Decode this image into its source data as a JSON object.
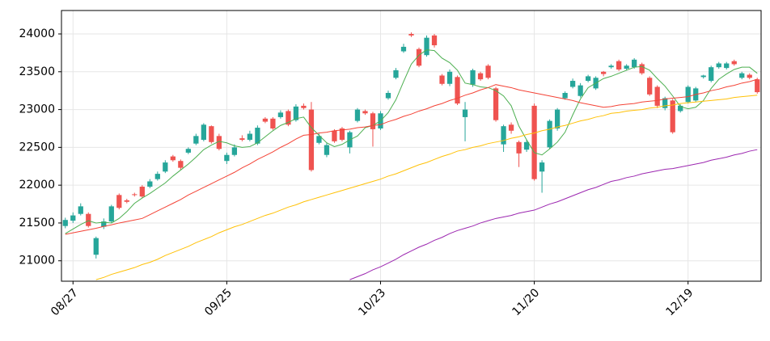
{
  "chart_data": {
    "type": "candlestick",
    "categories": [
      null,
      "08/27",
      null,
      null,
      null,
      null,
      null,
      null,
      null,
      null,
      null,
      null,
      null,
      null,
      null,
      null,
      null,
      null,
      null,
      null,
      null,
      "09/25",
      null,
      null,
      null,
      null,
      null,
      null,
      null,
      null,
      null,
      null,
      null,
      null,
      null,
      null,
      null,
      null,
      null,
      null,
      null,
      "10/23",
      null,
      null,
      null,
      null,
      null,
      null,
      null,
      null,
      null,
      null,
      null,
      null,
      null,
      null,
      null,
      null,
      null,
      null,
      null,
      "11/20",
      null,
      null,
      null,
      null,
      null,
      null,
      null,
      null,
      null,
      null,
      null,
      null,
      null,
      null,
      null,
      null,
      null,
      null,
      null,
      "12/19",
      null,
      null,
      null,
      null,
      null,
      null,
      null,
      null,
      null
    ],
    "open": [
      21460,
      21530,
      21620,
      21620,
      21080,
      21450,
      21520,
      21870,
      21800,
      21880,
      21980,
      21980,
      22080,
      22180,
      22380,
      22320,
      22430,
      22550,
      22600,
      22780,
      22650,
      22320,
      22400,
      22620,
      22600,
      22550,
      22880,
      22880,
      22900,
      22980,
      22860,
      23050,
      23000,
      22560,
      22400,
      22720,
      22750,
      22500,
      22850,
      22980,
      22950,
      22750,
      23150,
      23420,
      23770,
      24000,
      23800,
      23720,
      23980,
      23450,
      23340,
      23430,
      22900,
      23330,
      23480,
      23580,
      23280,
      22540,
      22800,
      22570,
      22470,
      23050,
      22180,
      22500,
      22750,
      23150,
      23300,
      23180,
      23380,
      23280,
      23500,
      23560,
      23640,
      23540,
      23560,
      23600,
      23420,
      23300,
      23020,
      23120,
      22980,
      23100,
      23120,
      23430,
      23380,
      23560,
      23550,
      23640,
      23420,
      23460,
      23400
    ],
    "high": [
      21570,
      21640,
      21760,
      21640,
      21320,
      21560,
      21740,
      21890,
      21820,
      21900,
      22000,
      22080,
      22180,
      22330,
      22400,
      22340,
      22500,
      22680,
      22820,
      22790,
      22680,
      22430,
      22540,
      22660,
      22720,
      22790,
      22900,
      22900,
      22990,
      23000,
      23070,
      23080,
      23100,
      22680,
      22560,
      22740,
      22770,
      22720,
      23020,
      23000,
      22970,
      22980,
      23250,
      23550,
      23870,
      24020,
      23820,
      23980,
      24000,
      23470,
      23530,
      23450,
      23100,
      23540,
      23500,
      23600,
      23300,
      22800,
      22830,
      22590,
      22600,
      23080,
      22330,
      22870,
      23020,
      23240,
      23410,
      23350,
      23460,
      23440,
      23510,
      23600,
      23660,
      23600,
      23680,
      23620,
      23440,
      23320,
      23170,
      23140,
      23070,
      23320,
      23300,
      23460,
      23580,
      23630,
      23630,
      23660,
      23500,
      23480,
      23420
    ],
    "low": [
      21430,
      21500,
      21600,
      21440,
      21030,
      21420,
      21500,
      21680,
      21760,
      21850,
      21830,
      21960,
      22060,
      22160,
      22310,
      22200,
      22410,
      22530,
      22580,
      22550,
      22460,
      22280,
      22380,
      22580,
      22580,
      22530,
      22820,
      22730,
      22880,
      22780,
      22840,
      23000,
      22180,
      22540,
      22370,
      22560,
      22580,
      22420,
      22830,
      22930,
      22510,
      22730,
      23130,
      23400,
      23750,
      23960,
      23560,
      23700,
      23820,
      23320,
      23310,
      23060,
      22580,
      23300,
      23380,
      23400,
      22840,
      22440,
      22680,
      22240,
      22440,
      22060,
      21900,
      22480,
      22720,
      23130,
      23280,
      23160,
      23360,
      23260,
      23440,
      23540,
      23510,
      23520,
      23540,
      23460,
      23180,
      23020,
      22990,
      22680,
      22960,
      23080,
      23100,
      23410,
      23360,
      23540,
      23530,
      23580,
      23400,
      23400,
      23210
    ],
    "close": [
      21540,
      21600,
      21720,
      21460,
      21300,
      21520,
      21720,
      21700,
      21780,
      21870,
      21850,
      22050,
      22150,
      22300,
      22330,
      22230,
      22480,
      22650,
      22800,
      22570,
      22480,
      22400,
      22500,
      22600,
      22680,
      22760,
      22840,
      22750,
      22960,
      22800,
      23040,
      23020,
      22200,
      22650,
      22530,
      22580,
      22600,
      22700,
      23000,
      22950,
      22740,
      22950,
      23220,
      23520,
      23830,
      23980,
      23580,
      23950,
      23850,
      23340,
      23500,
      23080,
      23000,
      23520,
      23400,
      23420,
      22860,
      22780,
      22720,
      22420,
      22570,
      22080,
      22300,
      22850,
      23000,
      23220,
      23380,
      23320,
      23440,
      23420,
      23470,
      23580,
      23530,
      23580,
      23660,
      23480,
      23200,
      23050,
      23150,
      22700,
      23050,
      23300,
      23280,
      23450,
      23560,
      23610,
      23610,
      23600,
      23480,
      23420,
      23230
    ],
    "up_color": "#26a69a",
    "down_color": "#ef5350",
    "series": [
      {
        "color": "#4caf50",
        "values": [
          21360,
          21420,
          21480,
          21530,
          21500,
          21510,
          21500,
          21560,
          21650,
          21760,
          21830,
          21890,
          21960,
          22030,
          22120,
          22200,
          22280,
          22370,
          22470,
          22530,
          22580,
          22560,
          22520,
          22500,
          22510,
          22560,
          22640,
          22720,
          22790,
          22830,
          22880,
          22900,
          22760,
          22660,
          22560,
          22510,
          22540,
          22600,
          22650,
          22760,
          22790,
          22850,
          22960,
          23130,
          23370,
          23600,
          23720,
          23790,
          23780,
          23680,
          23620,
          23520,
          23350,
          23330,
          23300,
          23290,
          23250,
          23180,
          23050,
          22780,
          22600,
          22430,
          22400,
          22480,
          22570,
          22700,
          22930,
          23140,
          23290,
          23350,
          23410,
          23440,
          23480,
          23520,
          23560,
          23570,
          23520,
          23410,
          23310,
          23180,
          23040,
          23010,
          23030,
          23120,
          23280,
          23400,
          23470,
          23530,
          23560,
          23560,
          23480
        ]
      },
      {
        "color": "#f44336",
        "values": [
          21350,
          21370,
          21390,
          21410,
          21430,
          21455,
          21475,
          21500,
          21520,
          21540,
          21560,
          21610,
          21660,
          21710,
          21760,
          21810,
          21870,
          21920,
          21970,
          22020,
          22070,
          22120,
          22170,
          22230,
          22280,
          22340,
          22390,
          22440,
          22500,
          22550,
          22610,
          22660,
          22670,
          22690,
          22700,
          22720,
          22730,
          22740,
          22760,
          22770,
          22790,
          22800,
          22840,
          22870,
          22910,
          22940,
          22980,
          23010,
          23050,
          23080,
          23120,
          23150,
          23190,
          23220,
          23260,
          23290,
          23330,
          23310,
          23290,
          23260,
          23240,
          23220,
          23200,
          23180,
          23160,
          23140,
          23120,
          23090,
          23070,
          23050,
          23030,
          23040,
          23060,
          23070,
          23080,
          23100,
          23110,
          23120,
          23140,
          23150,
          23160,
          23170,
          23200,
          23220,
          23250,
          23270,
          23300,
          23320,
          23350,
          23370,
          23400
        ]
      },
      {
        "color": "#ffc107",
        "values": [
          null,
          null,
          null,
          null,
          20750,
          20780,
          20820,
          20850,
          20880,
          20910,
          20950,
          20980,
          21020,
          21070,
          21110,
          21150,
          21190,
          21240,
          21280,
          21320,
          21370,
          21410,
          21450,
          21480,
          21520,
          21560,
          21600,
          21630,
          21670,
          21710,
          21740,
          21780,
          21810,
          21840,
          21870,
          21900,
          21930,
          21960,
          21990,
          22020,
          22050,
          22080,
          22120,
          22150,
          22190,
          22230,
          22270,
          22300,
          22340,
          22380,
          22410,
          22450,
          22470,
          22500,
          22520,
          22550,
          22570,
          22590,
          22620,
          22640,
          22670,
          22690,
          22720,
          22740,
          22770,
          22790,
          22820,
          22850,
          22870,
          22900,
          22920,
          22950,
          22960,
          22980,
          22990,
          23000,
          23020,
          23030,
          23050,
          23060,
          23080,
          23090,
          23100,
          23110,
          23120,
          23130,
          23140,
          23160,
          23170,
          23180,
          23190
        ]
      },
      {
        "color": "#9c27b0",
        "values": [
          null,
          null,
          null,
          null,
          null,
          null,
          null,
          null,
          null,
          null,
          null,
          null,
          null,
          null,
          null,
          null,
          null,
          null,
          null,
          null,
          null,
          null,
          null,
          null,
          null,
          null,
          null,
          null,
          null,
          null,
          null,
          null,
          null,
          null,
          null,
          null,
          null,
          20750,
          20790,
          20830,
          20880,
          20920,
          20970,
          21020,
          21080,
          21130,
          21180,
          21220,
          21270,
          21310,
          21360,
          21400,
          21430,
          21460,
          21500,
          21530,
          21560,
          21580,
          21600,
          21630,
          21650,
          21670,
          21710,
          21750,
          21780,
          21820,
          21860,
          21900,
          21940,
          21970,
          22010,
          22050,
          22070,
          22100,
          22120,
          22150,
          22170,
          22190,
          22210,
          22220,
          22240,
          22260,
          22280,
          22300,
          22330,
          22350,
          22370,
          22400,
          22420,
          22450,
          22470
        ]
      }
    ],
    "ylim": [
      20730,
      24310
    ],
    "yticks": [
      21000,
      21500,
      22000,
      22500,
      23000,
      23500,
      24000
    ],
    "grid": true
  }
}
